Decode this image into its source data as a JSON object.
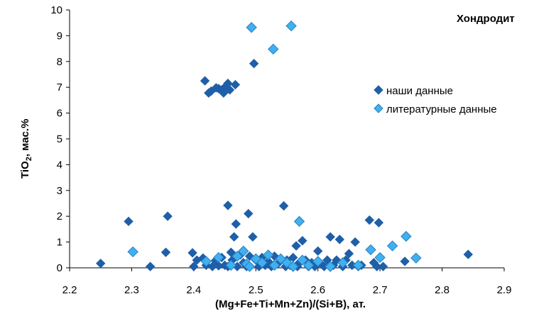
{
  "chart_data": {
    "type": "scatter",
    "title": "Хондродит",
    "xlabel": "(Mg+Fe+Ti+Mn+Zn)/(Si+B), ат.",
    "ylabel_main": "TiO",
    "ylabel_sub": "2",
    "ylabel_suffix": ", мас.%",
    "xlim": [
      2.2,
      2.9
    ],
    "ylim": [
      0,
      10
    ],
    "x_ticks": [
      "2.2",
      "2.3",
      "2.4",
      "2.5",
      "2.6",
      "2.7",
      "2.8",
      "2.9"
    ],
    "y_ticks": [
      "0",
      "1",
      "2",
      "3",
      "4",
      "5",
      "6",
      "7",
      "8",
      "9",
      "10"
    ],
    "legend_position": "right",
    "series": [
      {
        "name": "наши данные",
        "color": "#1f5fa8",
        "points": [
          [
            2.25,
            0.17
          ],
          [
            2.295,
            1.8
          ],
          [
            2.33,
            0.05
          ],
          [
            2.355,
            0.6
          ],
          [
            2.358,
            2.0
          ],
          [
            2.398,
            0.58
          ],
          [
            2.4,
            0.05
          ],
          [
            2.405,
            0.3
          ],
          [
            2.415,
            0.38
          ],
          [
            2.42,
            0.1
          ],
          [
            2.43,
            0.05
          ],
          [
            2.435,
            0.28
          ],
          [
            2.44,
            0.08
          ],
          [
            2.445,
            0.4
          ],
          [
            2.45,
            0.1
          ],
          [
            2.455,
            0.05
          ],
          [
            2.46,
            0.6
          ],
          [
            2.462,
            0.3
          ],
          [
            2.465,
            1.2
          ],
          [
            2.468,
            1.7
          ],
          [
            2.47,
            0.05
          ],
          [
            2.475,
            0.5
          ],
          [
            2.48,
            0.2
          ],
          [
            2.485,
            0.05
          ],
          [
            2.488,
            2.1
          ],
          [
            2.49,
            0.45
          ],
          [
            2.495,
            1.2
          ],
          [
            2.5,
            0.3
          ],
          [
            2.505,
            0.05
          ],
          [
            2.51,
            0.4
          ],
          [
            2.515,
            0.1
          ],
          [
            2.52,
            0.25
          ],
          [
            2.525,
            0.05
          ],
          [
            2.53,
            0.45
          ],
          [
            2.535,
            0.15
          ],
          [
            2.54,
            0.3
          ],
          [
            2.545,
            2.4
          ],
          [
            2.548,
            0.05
          ],
          [
            2.55,
            0.3
          ],
          [
            2.555,
            0.1
          ],
          [
            2.56,
            0.4
          ],
          [
            2.565,
            0.85
          ],
          [
            2.567,
            0.05
          ],
          [
            2.57,
            0.2
          ],
          [
            2.575,
            1.05
          ],
          [
            2.58,
            0.3
          ],
          [
            2.585,
            0.05
          ],
          [
            2.59,
            0.2
          ],
          [
            2.595,
            0.05
          ],
          [
            2.6,
            0.65
          ],
          [
            2.605,
            0.15
          ],
          [
            2.61,
            0.05
          ],
          [
            2.615,
            0.3
          ],
          [
            2.62,
            1.2
          ],
          [
            2.625,
            0.1
          ],
          [
            2.63,
            0.3
          ],
          [
            2.635,
            1.1
          ],
          [
            2.64,
            0.05
          ],
          [
            2.645,
            0.3
          ],
          [
            2.65,
            0.55
          ],
          [
            2.655,
            0.1
          ],
          [
            2.66,
            1.0
          ],
          [
            2.665,
            0.05
          ],
          [
            2.67,
            0.1
          ],
          [
            2.683,
            1.85
          ],
          [
            2.69,
            0.2
          ],
          [
            2.695,
            0.05
          ],
          [
            2.698,
            1.75
          ],
          [
            2.705,
            0.05
          ],
          [
            2.74,
            0.25
          ],
          [
            2.842,
            0.52
          ],
          [
            2.455,
            2.42
          ],
          [
            2.418,
            7.25
          ],
          [
            2.424,
            6.78
          ],
          [
            2.428,
            6.85
          ],
          [
            2.436,
            6.98
          ],
          [
            2.44,
            6.95
          ],
          [
            2.445,
            6.9
          ],
          [
            2.448,
            6.78
          ],
          [
            2.452,
            7.05
          ],
          [
            2.455,
            7.15
          ],
          [
            2.458,
            6.9
          ],
          [
            2.467,
            7.1
          ],
          [
            2.497,
            7.92
          ]
        ]
      },
      {
        "name": "литературные данные",
        "color": "#3fb0f0",
        "points": [
          [
            2.302,
            0.62
          ],
          [
            2.42,
            0.25
          ],
          [
            2.44,
            0.4
          ],
          [
            2.46,
            0.1
          ],
          [
            2.47,
            0.45
          ],
          [
            2.48,
            0.65
          ],
          [
            2.485,
            0.15
          ],
          [
            2.49,
            0.05
          ],
          [
            2.5,
            0.35
          ],
          [
            2.51,
            0.2
          ],
          [
            2.52,
            0.5
          ],
          [
            2.53,
            0.1
          ],
          [
            2.54,
            0.35
          ],
          [
            2.55,
            0.2
          ],
          [
            2.56,
            0.05
          ],
          [
            2.57,
            1.8
          ],
          [
            2.575,
            0.3
          ],
          [
            2.585,
            0.1
          ],
          [
            2.6,
            0.25
          ],
          [
            2.62,
            0.05
          ],
          [
            2.64,
            0.2
          ],
          [
            2.665,
            0.1
          ],
          [
            2.685,
            0.7
          ],
          [
            2.7,
            0.4
          ],
          [
            2.72,
            0.85
          ],
          [
            2.742,
            1.22
          ],
          [
            2.758,
            0.38
          ],
          [
            2.493,
            9.32
          ],
          [
            2.528,
            8.48
          ],
          [
            2.557,
            9.38
          ]
        ]
      }
    ]
  }
}
